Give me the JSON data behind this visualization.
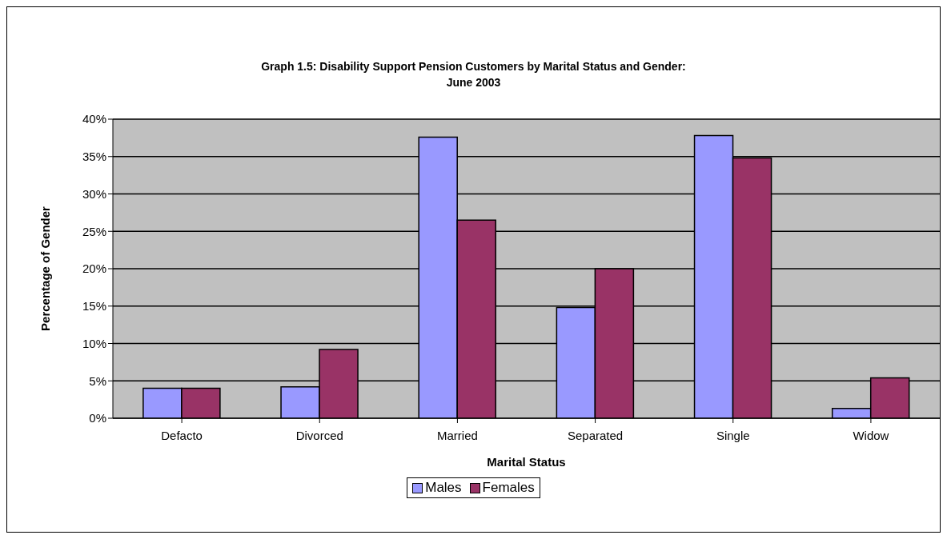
{
  "chart_data": {
    "type": "bar",
    "title": "Graph 1.5: Disability Support Pension Customers by Marital Status and Gender:\nJune 2003",
    "xlabel": "Marital Status",
    "ylabel": "Percentage of Gender",
    "categories": [
      "Defacto",
      "Divorced",
      "Married",
      "Separated",
      "Single",
      "Widow"
    ],
    "series": [
      {
        "name": "Males",
        "color": "#9999ff",
        "values": [
          4.0,
          4.2,
          37.6,
          14.8,
          37.8,
          1.3
        ]
      },
      {
        "name": "Females",
        "color": "#993366",
        "values": [
          4.0,
          9.2,
          26.5,
          20.0,
          34.8,
          5.4
        ]
      }
    ],
    "ylim": [
      0,
      40
    ],
    "yticks": [
      {
        "value": 0,
        "label": "0%"
      },
      {
        "value": 5,
        "label": "5%"
      },
      {
        "value": 10,
        "label": "10%"
      },
      {
        "value": 15,
        "label": "15%"
      },
      {
        "value": 20,
        "label": "20%"
      },
      {
        "value": 25,
        "label": "25%"
      },
      {
        "value": 30,
        "label": "30%"
      },
      {
        "value": 35,
        "label": "35%"
      },
      {
        "value": 40,
        "label": "40%"
      }
    ],
    "grid": "y",
    "legend": "bottom"
  }
}
